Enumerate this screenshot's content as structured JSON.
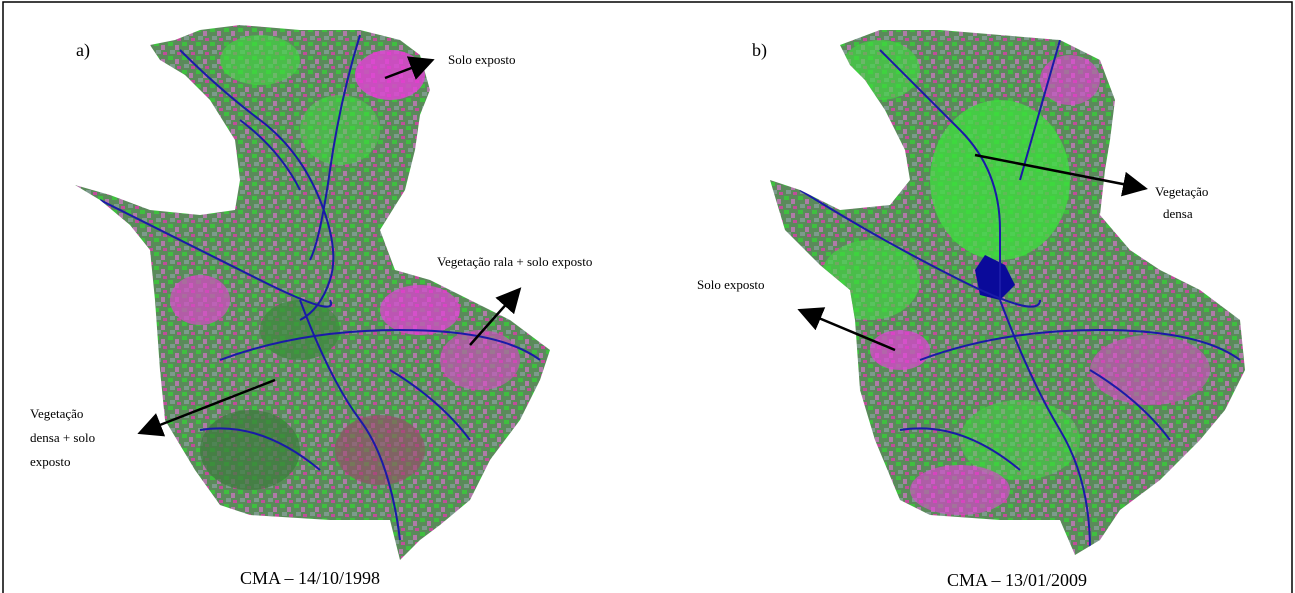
{
  "panels": [
    {
      "label": "a)",
      "caption": "CMA – 14/10/1998",
      "annotations": [
        [
          "Solo exposto"
        ],
        [
          "Vegetação rala + solo exposto"
        ],
        [
          "Vegetação",
          "densa + solo",
          "exposto"
        ]
      ]
    },
    {
      "label": "b)",
      "caption": "CMA – 13/01/2009",
      "annotations": [
        [
          "Vegetação",
          "densa"
        ],
        [
          "Solo exposto"
        ]
      ]
    }
  ]
}
